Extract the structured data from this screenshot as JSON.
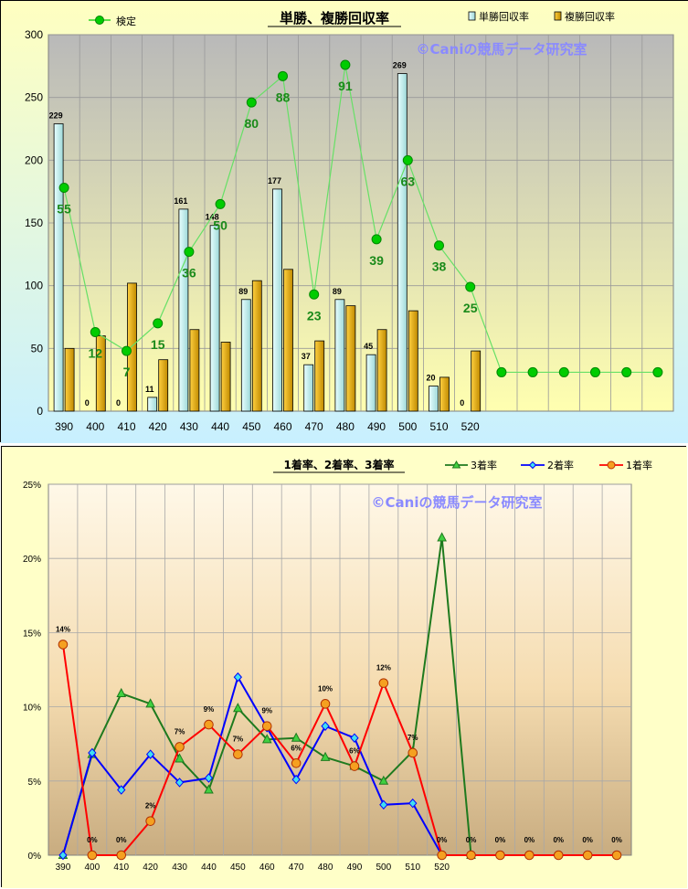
{
  "charts": [
    {
      "title": "単勝、複勝回収率",
      "watermark": "©Caniの競馬データ研究室",
      "legend": {
        "line": "検定",
        "bar1": "単勝回収率",
        "bar2": "複勝回収率"
      },
      "yticks": [
        "0",
        "50",
        "100",
        "150",
        "200",
        "250",
        "300"
      ],
      "xticks": [
        "390",
        "400",
        "410",
        "420",
        "430",
        "440",
        "450",
        "460",
        "470",
        "480",
        "490",
        "500",
        "510",
        "520"
      ]
    },
    {
      "title": "1着率、2着率、3着率",
      "watermark": "©Caniの競馬データ研究室",
      "legend": {
        "s3": "3着率",
        "s2": "2着率",
        "s1": "1着率"
      },
      "yticks": [
        "0%",
        "5%",
        "10%",
        "15%",
        "20%",
        "25%"
      ],
      "xticks": [
        "390",
        "400",
        "410",
        "420",
        "430",
        "440",
        "450",
        "460",
        "470",
        "480",
        "490",
        "500",
        "510",
        "520"
      ]
    }
  ],
  "colors": {
    "tan": "#c8f0f0",
    "fuku": "#f0b400",
    "kentei": "#00cc00",
    "s3": "#1e7a1e",
    "s2": "#0000ff",
    "s1": "#ff0000",
    "s1fill": "#f5a020",
    "s2fill": "#40e0f0"
  },
  "chart_data": [
    {
      "type": "bar",
      "title": "単勝、複勝回収率",
      "categories": [
        "390",
        "400",
        "410",
        "420",
        "430",
        "440",
        "450",
        "460",
        "470",
        "480",
        "490",
        "500",
        "510",
        "520",
        "",
        "",
        "",
        "",
        "",
        ""
      ],
      "series": [
        {
          "name": "単勝回収率",
          "values": [
            229,
            0,
            0,
            11,
            161,
            148,
            89,
            177,
            37,
            89,
            45,
            269,
            20,
            0,
            null,
            null,
            null,
            null,
            null,
            null
          ],
          "labels": [
            "229",
            "0",
            "0",
            "11",
            "161",
            "148",
            "89",
            "177",
            "37",
            "89",
            "45",
            "269",
            "20",
            "0",
            "",
            "",
            "",
            "",
            "",
            ""
          ]
        },
        {
          "name": "複勝回収率",
          "values": [
            50,
            60,
            102,
            41,
            65,
            55,
            104,
            113,
            56,
            84,
            65,
            80,
            27,
            48,
            null,
            null,
            null,
            null,
            null,
            null
          ]
        },
        {
          "name": "検定",
          "type": "line",
          "values": [
            178,
            63,
            48,
            70,
            127,
            165,
            246,
            267,
            93,
            276,
            137,
            200,
            132,
            99,
            31,
            31,
            31,
            31,
            31,
            31
          ],
          "labels": [
            "55",
            "12",
            "7",
            "15",
            "36",
            "50",
            "80",
            "88",
            "23",
            "91",
            "39",
            "63",
            "38",
            "25",
            "",
            "",
            "",
            "",
            "",
            ""
          ]
        }
      ],
      "ylim": [
        0,
        300
      ],
      "grid": true,
      "legend_position": "top"
    },
    {
      "type": "line",
      "title": "1着率、2着率、3着率",
      "categories": [
        "390",
        "400",
        "410",
        "420",
        "430",
        "440",
        "450",
        "460",
        "470",
        "480",
        "490",
        "500",
        "510",
        "520",
        "",
        "",
        "",
        "",
        "",
        ""
      ],
      "series": [
        {
          "name": "3着率",
          "values": [
            0,
            6.8,
            10.9,
            10.2,
            6.5,
            4.4,
            9.9,
            7.8,
            7.9,
            6.6,
            6.0,
            5.0,
            7.0,
            21.4,
            0,
            null,
            null,
            null,
            null,
            null
          ]
        },
        {
          "name": "2着率",
          "values": [
            0,
            6.9,
            4.4,
            6.8,
            4.9,
            5.2,
            12.0,
            8.6,
            5.1,
            8.7,
            7.9,
            3.4,
            3.5,
            0,
            null,
            null,
            null,
            null,
            null,
            null
          ]
        },
        {
          "name": "1着率",
          "values": [
            14.2,
            0,
            0,
            2.3,
            7.3,
            8.8,
            6.8,
            8.7,
            6.2,
            10.2,
            6.0,
            11.6,
            6.9,
            0,
            0,
            0,
            0,
            0,
            0,
            0
          ],
          "labels": [
            "14%",
            "0%",
            "0%",
            "2%",
            "7%",
            "9%",
            "7%",
            "9%",
            "6%",
            "10%",
            "6%",
            "12%",
            "7%",
            "0%",
            "0%",
            "0%",
            "0%",
            "0%",
            "0%",
            "0%"
          ]
        }
      ],
      "ylim": [
        0,
        25
      ],
      "yunit": "%",
      "grid": true,
      "legend_position": "top-right"
    }
  ]
}
